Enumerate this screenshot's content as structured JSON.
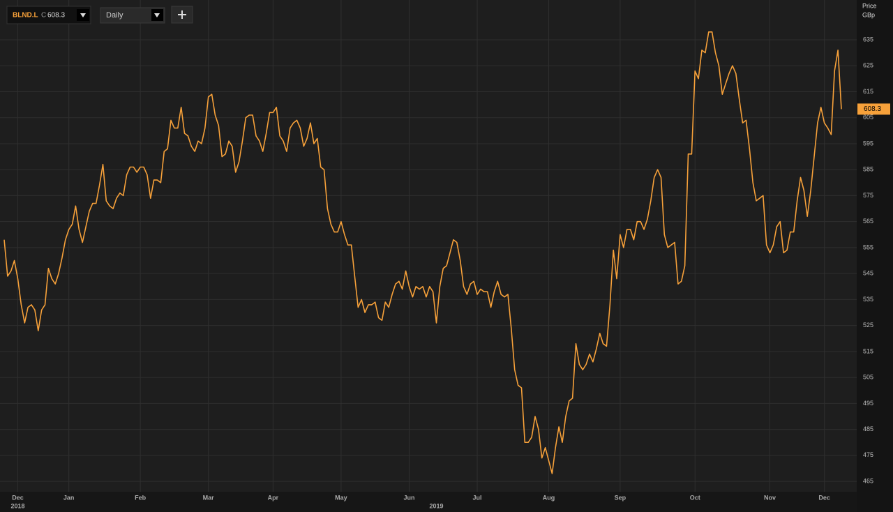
{
  "header": {
    "symbol": "BLND.L",
    "close_label": "C",
    "interval": "Daily"
  },
  "chart_data": {
    "type": "line",
    "y_label": "Price",
    "y_unit": "GBp",
    "categories": [
      null,
      null,
      null,
      null,
      "Dec",
      null,
      null,
      null,
      null,
      null,
      null,
      null,
      null,
      null,
      null,
      null,
      null,
      null,
      null,
      "Jan",
      null,
      null,
      null,
      null,
      null,
      null,
      null,
      null,
      null,
      null,
      null,
      null,
      null,
      null,
      null,
      null,
      null,
      null,
      null,
      null,
      "Feb",
      null,
      null,
      null,
      null,
      null,
      null,
      null,
      null,
      null,
      null,
      null,
      null,
      null,
      null,
      null,
      null,
      null,
      null,
      null,
      "Mar",
      null,
      null,
      null,
      null,
      null,
      null,
      null,
      null,
      null,
      null,
      null,
      null,
      null,
      null,
      null,
      null,
      null,
      null,
      "Apr",
      null,
      null,
      null,
      null,
      null,
      null,
      null,
      null,
      null,
      null,
      null,
      null,
      null,
      null,
      null,
      null,
      null,
      null,
      null,
      "May",
      null,
      null,
      null,
      null,
      null,
      null,
      null,
      null,
      null,
      null,
      null,
      null,
      null,
      null,
      null,
      null,
      null,
      null,
      null,
      "Jun",
      null,
      null,
      null,
      null,
      null,
      null,
      null,
      null,
      null,
      null,
      null,
      null,
      null,
      null,
      null,
      null,
      null,
      null,
      null,
      "Jul",
      null,
      null,
      null,
      null,
      null,
      null,
      null,
      null,
      null,
      null,
      null,
      null,
      null,
      null,
      null,
      null,
      null,
      null,
      null,
      null,
      "Aug",
      null,
      null,
      null,
      null,
      null,
      null,
      null,
      null,
      null,
      null,
      null,
      null,
      null,
      null,
      null,
      null,
      null,
      null,
      null,
      null,
      "Sep",
      null,
      null,
      null,
      null,
      null,
      null,
      null,
      null,
      null,
      null,
      null,
      null,
      null,
      null,
      null,
      null,
      null,
      null,
      null,
      null,
      null,
      "Oct",
      null,
      null,
      null,
      null,
      null,
      null,
      null,
      null,
      null,
      null,
      null,
      null,
      null,
      null,
      null,
      null,
      null,
      null,
      null,
      null,
      null,
      "Nov",
      null,
      null,
      null,
      null,
      null,
      null,
      null,
      null,
      null,
      null,
      null,
      null,
      null,
      null,
      null,
      "Dec",
      null,
      null,
      null,
      null,
      null
    ],
    "year_labels": [
      null,
      null,
      null,
      null,
      "2018",
      null,
      null,
      null,
      null,
      null,
      null,
      null,
      null,
      null,
      null,
      null,
      null,
      null,
      null,
      null,
      null,
      null,
      null,
      null,
      null,
      null,
      null,
      null,
      null,
      null,
      null,
      null,
      null,
      null,
      null,
      null,
      null,
      null,
      null,
      null,
      null,
      null,
      null,
      null,
      null,
      null,
      null,
      null,
      null,
      null,
      null,
      null,
      null,
      null,
      null,
      null,
      null,
      null,
      null,
      null,
      null,
      null,
      null,
      null,
      null,
      null,
      null,
      null,
      null,
      null,
      null,
      null,
      null,
      null,
      null,
      null,
      null,
      null,
      null,
      null,
      null,
      null,
      null,
      null,
      null,
      null,
      null,
      null,
      null,
      null,
      null,
      null,
      null,
      null,
      null,
      null,
      null,
      null,
      null,
      null,
      null,
      null,
      null,
      null,
      null,
      null,
      null,
      null,
      null,
      null,
      null,
      null,
      null,
      null,
      null,
      null,
      null,
      null,
      null,
      null,
      null,
      null,
      null,
      null,
      null,
      null,
      null,
      "2019",
      null,
      null,
      null,
      null,
      null,
      null,
      null,
      null,
      null,
      null,
      null,
      null,
      null,
      null,
      null,
      null,
      null,
      null,
      null,
      null,
      null,
      null,
      null,
      null,
      null,
      null,
      null,
      null,
      null,
      null,
      null,
      null,
      null,
      null,
      null,
      null,
      null,
      null,
      null,
      null,
      null,
      null,
      null,
      null,
      null,
      null,
      null,
      null,
      null,
      null,
      null,
      null,
      null,
      null,
      null,
      null,
      null,
      null,
      null,
      null,
      null,
      null,
      null,
      null,
      null,
      null,
      null,
      null,
      null,
      null,
      null,
      null,
      null,
      null,
      null,
      null,
      null,
      null,
      null,
      null,
      null,
      null,
      null,
      null,
      null,
      null,
      null,
      null,
      null,
      null,
      null,
      null,
      null,
      null,
      null,
      null,
      null,
      null,
      null,
      null,
      null,
      null,
      null,
      null,
      null,
      null,
      null,
      null,
      null,
      null,
      null,
      null,
      null,
      null,
      null,
      null,
      null,
      null,
      null
    ],
    "series": [
      {
        "name": "BLND.L",
        "color": "#f7a13a",
        "values": [
          558,
          544,
          546,
          550,
          543,
          533,
          526,
          532,
          533,
          531,
          523,
          531,
          533,
          547,
          543,
          541,
          545,
          551,
          558,
          562,
          564,
          571,
          562,
          557,
          563,
          569,
          572,
          572,
          579,
          587,
          573,
          571,
          570,
          574,
          576,
          575,
          583,
          586,
          586,
          584,
          586,
          586,
          583,
          574,
          581,
          581,
          580,
          592,
          593,
          604,
          601,
          601,
          609,
          599,
          598,
          594,
          592,
          596,
          595,
          601,
          613,
          614,
          606,
          602,
          590,
          591,
          596,
          594,
          584,
          588,
          596,
          605,
          606,
          606,
          598,
          596,
          592,
          599,
          607,
          607,
          609,
          598,
          596,
          592,
          601,
          603,
          604,
          601,
          594,
          597,
          603,
          595,
          597,
          586,
          585,
          570,
          564,
          561,
          561,
          565,
          560,
          556,
          556,
          544,
          532,
          535,
          530,
          533,
          533,
          534,
          528,
          527,
          534,
          532,
          537,
          541,
          542,
          539,
          546,
          540,
          536,
          540,
          539,
          540,
          536,
          540,
          538,
          526,
          540,
          547,
          548,
          553,
          558,
          557,
          550,
          540,
          537,
          541,
          542,
          537,
          539,
          538,
          538,
          532,
          538,
          542,
          537,
          536,
          537,
          524,
          508,
          502,
          501,
          480,
          480,
          482,
          490,
          485,
          474,
          478,
          473,
          468,
          478,
          486,
          480,
          490,
          496,
          497,
          518,
          510,
          508,
          510,
          514,
          511,
          516,
          522,
          518,
          517,
          533,
          554,
          543,
          560,
          555,
          562,
          562,
          558,
          565,
          565,
          562,
          566,
          573,
          582,
          585,
          582,
          560,
          555,
          556,
          557,
          541,
          542,
          548,
          591,
          591,
          623,
          620,
          631,
          630,
          638,
          638,
          630,
          625,
          614,
          618,
          622,
          625,
          622,
          612,
          603,
          604,
          593,
          580,
          573,
          574,
          575,
          556,
          553,
          556,
          563,
          565,
          553,
          554,
          561,
          561,
          573,
          582,
          577,
          567,
          577,
          590,
          603,
          609,
          603,
          601,
          598.5,
          623,
          631,
          608.3
        ]
      }
    ],
    "ylim": [
      461,
      650.3
    ],
    "yticks": [
      465,
      475,
      485,
      495,
      505,
      515,
      525,
      535,
      545,
      555,
      565,
      575,
      585,
      595,
      605,
      615,
      625,
      635
    ],
    "grid": true
  }
}
